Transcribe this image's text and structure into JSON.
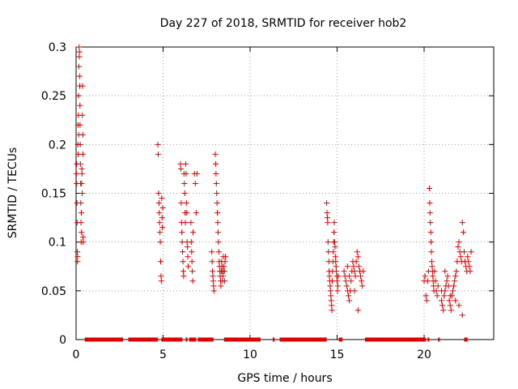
{
  "chart_data": {
    "type": "scatter",
    "title": "Day 227 of 2018, SRMTID for receiver hob2",
    "xlabel": "GPS time / hours",
    "ylabel": "SRMTID / TECUs",
    "xlim": [
      0,
      24
    ],
    "ylim": [
      0,
      0.3
    ],
    "x_ticks": [
      0,
      5,
      10,
      15,
      20
    ],
    "x_tick_labels": [
      "0",
      "5",
      "10",
      "15",
      "20"
    ],
    "y_ticks": [
      0,
      0.05,
      0.1,
      0.15,
      0.2,
      0.25,
      0.3
    ],
    "y_tick_labels": [
      "0",
      "0.05",
      "0.1",
      "0.15",
      "0.2",
      "0.25",
      "0.3"
    ],
    "grid": true,
    "marker": "+",
    "color": "#e00000",
    "zero_value_ranges": [
      [
        0.5,
        2.7
      ],
      [
        3.0,
        4.7
      ],
      [
        4.9,
        6.1
      ],
      [
        6.3,
        6.4
      ],
      [
        6.5,
        6.9
      ],
      [
        7.0,
        7.9
      ],
      [
        8.5,
        10.6
      ],
      [
        11.3,
        11.4
      ],
      [
        11.7,
        14.4
      ],
      [
        15.1,
        15.3
      ],
      [
        16.6,
        20.1
      ],
      [
        20.2,
        20.3
      ],
      [
        20.8,
        20.9
      ],
      [
        22.3,
        22.5
      ]
    ],
    "points": [
      [
        0.02,
        0.17
      ],
      [
        0.03,
        0.16
      ],
      [
        0.04,
        0.18
      ],
      [
        0.05,
        0.14
      ],
      [
        0.06,
        0.12
      ],
      [
        0.07,
        0.09
      ],
      [
        0.08,
        0.08
      ],
      [
        0.09,
        0.085
      ],
      [
        0.1,
        0.2
      ],
      [
        0.11,
        0.22
      ],
      [
        0.12,
        0.19
      ],
      [
        0.13,
        0.23
      ],
      [
        0.14,
        0.25
      ],
      [
        0.15,
        0.21
      ],
      [
        0.16,
        0.28
      ],
      [
        0.17,
        0.3
      ],
      [
        0.18,
        0.29
      ],
      [
        0.19,
        0.295
      ],
      [
        0.2,
        0.27
      ],
      [
        0.21,
        0.26
      ],
      [
        0.22,
        0.24
      ],
      [
        0.23,
        0.22
      ],
      [
        0.24,
        0.2
      ],
      [
        0.25,
        0.18
      ],
      [
        0.26,
        0.16
      ],
      [
        0.27,
        0.14
      ],
      [
        0.28,
        0.12
      ],
      [
        0.29,
        0.1
      ],
      [
        0.3,
        0.13
      ],
      [
        0.31,
        0.11
      ],
      [
        0.32,
        0.16
      ],
      [
        0.33,
        0.175
      ],
      [
        0.34,
        0.17
      ],
      [
        0.35,
        0.15
      ],
      [
        0.36,
        0.23
      ],
      [
        0.37,
        0.26
      ],
      [
        0.38,
        0.21
      ],
      [
        0.39,
        0.19
      ],
      [
        0.4,
        0.105
      ],
      [
        0.41,
        0.1
      ],
      [
        4.7,
        0.2
      ],
      [
        4.72,
        0.19
      ],
      [
        4.74,
        0.15
      ],
      [
        4.76,
        0.14
      ],
      [
        4.78,
        0.13
      ],
      [
        4.8,
        0.12
      ],
      [
        4.82,
        0.11
      ],
      [
        4.84,
        0.1
      ],
      [
        4.86,
        0.08
      ],
      [
        4.88,
        0.065
      ],
      [
        4.9,
        0.06
      ],
      [
        4.92,
        0.145
      ],
      [
        4.94,
        0.125
      ],
      [
        4.96,
        0.115
      ],
      [
        4.98,
        0.135
      ],
      [
        6.0,
        0.18
      ],
      [
        6.02,
        0.175
      ],
      [
        6.04,
        0.14
      ],
      [
        6.06,
        0.12
      ],
      [
        6.08,
        0.11
      ],
      [
        6.1,
        0.1
      ],
      [
        6.12,
        0.09
      ],
      [
        6.14,
        0.08
      ],
      [
        6.16,
        0.07
      ],
      [
        6.18,
        0.065
      ],
      [
        6.2,
        0.17
      ],
      [
        6.22,
        0.16
      ],
      [
        6.24,
        0.15
      ],
      [
        6.26,
        0.13
      ],
      [
        6.28,
        0.12
      ],
      [
        6.3,
        0.18
      ],
      [
        6.32,
        0.17
      ],
      [
        6.34,
        0.14
      ],
      [
        6.36,
        0.13
      ],
      [
        6.38,
        0.1
      ],
      [
        6.4,
        0.095
      ],
      [
        6.42,
        0.085
      ],
      [
        6.44,
        0.075
      ],
      [
        6.6,
        0.12
      ],
      [
        6.62,
        0.1
      ],
      [
        6.64,
        0.09
      ],
      [
        6.66,
        0.08
      ],
      [
        6.68,
        0.07
      ],
      [
        6.7,
        0.06
      ],
      [
        6.72,
        0.11
      ],
      [
        6.8,
        0.17
      ],
      [
        6.85,
        0.16
      ],
      [
        6.9,
        0.13
      ],
      [
        6.95,
        0.17
      ],
      [
        7.8,
        0.09
      ],
      [
        7.82,
        0.08
      ],
      [
        7.84,
        0.07
      ],
      [
        7.86,
        0.065
      ],
      [
        7.88,
        0.06
      ],
      [
        7.9,
        0.055
      ],
      [
        7.92,
        0.05
      ],
      [
        8.0,
        0.19
      ],
      [
        8.02,
        0.18
      ],
      [
        8.04,
        0.17
      ],
      [
        8.06,
        0.16
      ],
      [
        8.08,
        0.15
      ],
      [
        8.1,
        0.14
      ],
      [
        8.12,
        0.13
      ],
      [
        8.14,
        0.12
      ],
      [
        8.16,
        0.11
      ],
      [
        8.18,
        0.1
      ],
      [
        8.2,
        0.09
      ],
      [
        8.22,
        0.08
      ],
      [
        8.24,
        0.075
      ],
      [
        8.26,
        0.07
      ],
      [
        8.28,
        0.065
      ],
      [
        8.3,
        0.06
      ],
      [
        8.32,
        0.055
      ],
      [
        8.34,
        0.07
      ],
      [
        8.36,
        0.08
      ],
      [
        8.38,
        0.075
      ],
      [
        8.4,
        0.07
      ],
      [
        8.42,
        0.06
      ],
      [
        8.44,
        0.065
      ],
      [
        8.46,
        0.085
      ],
      [
        8.48,
        0.075
      ],
      [
        8.5,
        0.07
      ],
      [
        8.52,
        0.07
      ],
      [
        8.54,
        0.06
      ],
      [
        8.56,
        0.08
      ],
      [
        8.58,
        0.085
      ],
      [
        14.4,
        0.14
      ],
      [
        14.42,
        0.13
      ],
      [
        14.44,
        0.125
      ],
      [
        14.46,
        0.12
      ],
      [
        14.48,
        0.1
      ],
      [
        14.5,
        0.09
      ],
      [
        14.52,
        0.08
      ],
      [
        14.54,
        0.07
      ],
      [
        14.56,
        0.065
      ],
      [
        14.58,
        0.06
      ],
      [
        14.6,
        0.055
      ],
      [
        14.62,
        0.05
      ],
      [
        14.64,
        0.045
      ],
      [
        14.66,
        0.04
      ],
      [
        14.68,
        0.035
      ],
      [
        14.7,
        0.03
      ],
      [
        14.72,
        0.06
      ],
      [
        14.74,
        0.07
      ],
      [
        14.76,
        0.08
      ],
      [
        14.78,
        0.09
      ],
      [
        14.8,
        0.1
      ],
      [
        14.82,
        0.11
      ],
      [
        14.84,
        0.12
      ],
      [
        14.86,
        0.1
      ],
      [
        14.88,
        0.095
      ],
      [
        14.9,
        0.085
      ],
      [
        14.92,
        0.08
      ],
      [
        14.94,
        0.075
      ],
      [
        14.96,
        0.07
      ],
      [
        14.98,
        0.065
      ],
      [
        15.0,
        0.06
      ],
      [
        15.02,
        0.05
      ],
      [
        15.04,
        0.055
      ],
      [
        15.06,
        0.065
      ],
      [
        15.4,
        0.07
      ],
      [
        15.45,
        0.065
      ],
      [
        15.5,
        0.06
      ],
      [
        15.55,
        0.055
      ],
      [
        15.6,
        0.05
      ],
      [
        15.65,
        0.045
      ],
      [
        15.7,
        0.04
      ],
      [
        15.75,
        0.05
      ],
      [
        15.8,
        0.06
      ],
      [
        15.85,
        0.07
      ],
      [
        15.9,
        0.08
      ],
      [
        15.95,
        0.075
      ],
      [
        16.0,
        0.07
      ],
      [
        16.05,
        0.065
      ],
      [
        16.1,
        0.08
      ],
      [
        16.15,
        0.09
      ],
      [
        16.2,
        0.085
      ],
      [
        16.25,
        0.075
      ],
      [
        16.3,
        0.07
      ],
      [
        16.35,
        0.065
      ],
      [
        16.4,
        0.06
      ],
      [
        16.45,
        0.055
      ],
      [
        16.5,
        0.07
      ],
      [
        16.2,
        0.03
      ],
      [
        16.0,
        0.05
      ],
      [
        15.7,
        0.065
      ],
      [
        15.6,
        0.075
      ],
      [
        20.0,
        0.06
      ],
      [
        20.05,
        0.065
      ],
      [
        20.1,
        0.045
      ],
      [
        20.15,
        0.04
      ],
      [
        20.2,
        0.06
      ],
      [
        20.25,
        0.07
      ],
      [
        20.3,
        0.155
      ],
      [
        20.32,
        0.14
      ],
      [
        20.34,
        0.13
      ],
      [
        20.36,
        0.12
      ],
      [
        20.38,
        0.11
      ],
      [
        20.4,
        0.1
      ],
      [
        20.42,
        0.09
      ],
      [
        20.44,
        0.08
      ],
      [
        20.46,
        0.075
      ],
      [
        20.48,
        0.07
      ],
      [
        20.5,
        0.065
      ],
      [
        20.52,
        0.06
      ],
      [
        20.54,
        0.055
      ],
      [
        20.56,
        0.05
      ],
      [
        20.6,
        0.07
      ],
      [
        20.65,
        0.06
      ],
      [
        20.7,
        0.05
      ],
      [
        20.75,
        0.045
      ],
      [
        20.8,
        0.055
      ],
      [
        21.0,
        0.04
      ],
      [
        21.05,
        0.035
      ],
      [
        21.1,
        0.03
      ],
      [
        21.15,
        0.045
      ],
      [
        21.2,
        0.05
      ],
      [
        21.25,
        0.055
      ],
      [
        21.3,
        0.06
      ],
      [
        21.35,
        0.065
      ],
      [
        21.4,
        0.055
      ],
      [
        21.45,
        0.04
      ],
      [
        21.5,
        0.035
      ],
      [
        21.55,
        0.03
      ],
      [
        21.6,
        0.045
      ],
      [
        21.65,
        0.05
      ],
      [
        21.7,
        0.055
      ],
      [
        21.75,
        0.06
      ],
      [
        21.8,
        0.065
      ],
      [
        21.85,
        0.07
      ],
      [
        21.9,
        0.08
      ],
      [
        21.95,
        0.095
      ],
      [
        22.0,
        0.1
      ],
      [
        22.05,
        0.09
      ],
      [
        22.1,
        0.085
      ],
      [
        22.15,
        0.08
      ],
      [
        22.2,
        0.12
      ],
      [
        22.25,
        0.11
      ],
      [
        22.3,
        0.09
      ],
      [
        22.35,
        0.08
      ],
      [
        22.4,
        0.075
      ],
      [
        22.45,
        0.07
      ],
      [
        22.5,
        0.085
      ],
      [
        22.55,
        0.08
      ],
      [
        22.6,
        0.075
      ],
      [
        22.65,
        0.07
      ],
      [
        22.7,
        0.09
      ],
      [
        22.2,
        0.025
      ],
      [
        21.5,
        0.045
      ],
      [
        21.0,
        0.05
      ],
      [
        22.0,
        0.035
      ],
      [
        21.2,
        0.07
      ],
      [
        21.8,
        0.04
      ]
    ]
  }
}
